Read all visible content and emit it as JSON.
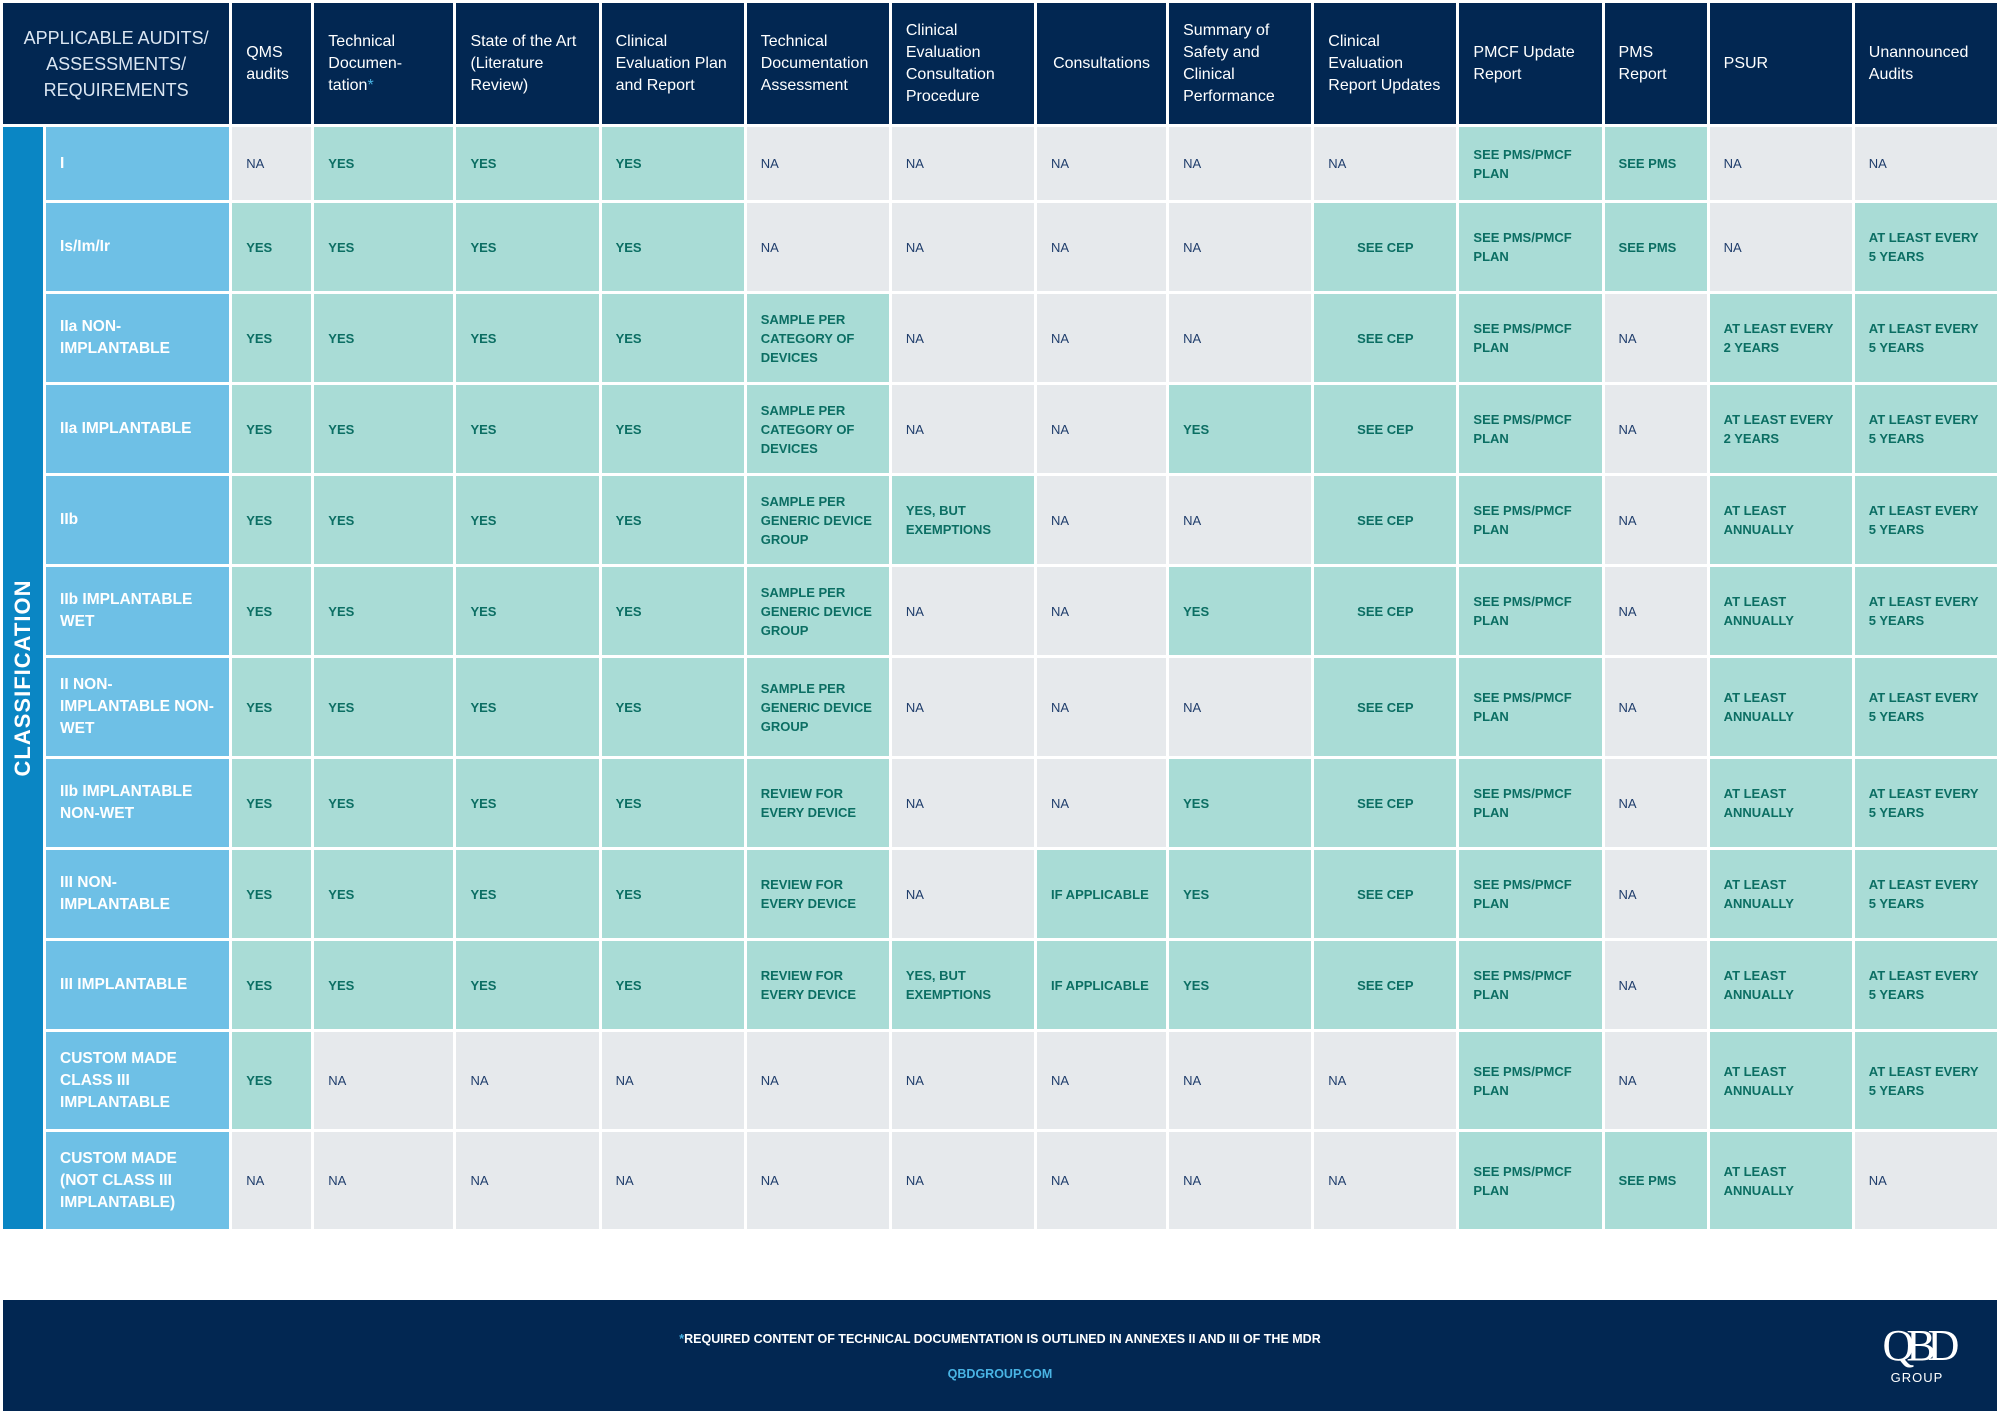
{
  "header": {
    "corner": "APPLICABLE AUDITS/ ASSESSMENTS/ REQUIREMENTS",
    "columns": [
      {
        "text": "QMS audits"
      },
      {
        "text": "Technical Documen-tation",
        "marker": "*"
      },
      {
        "text": "State of the Art (Literature Review)"
      },
      {
        "text": "Clinical Evaluation Plan and Report"
      },
      {
        "text": "Technical Documentation Assessment"
      },
      {
        "text": "Clinical Evaluation Consultation Procedure"
      },
      {
        "text": "Consultations"
      },
      {
        "text": "Summary of Safety and Clinical Performance"
      },
      {
        "text": "Clinical Evaluation Report Updates"
      },
      {
        "text": "PMCF Update Report"
      },
      {
        "text": "PMS Report"
      },
      {
        "text": "PSUR"
      },
      {
        "text": "Unannounced Audits"
      }
    ]
  },
  "side_label": "CLASSIFICATION",
  "rows": [
    {
      "label": "I",
      "cells": [
        {
          "text": "NA",
          "tone": "g"
        },
        {
          "text": "YES",
          "tone": "t"
        },
        {
          "text": "YES",
          "tone": "t"
        },
        {
          "text": "YES",
          "tone": "t"
        },
        {
          "text": "NA",
          "tone": "g"
        },
        {
          "text": "NA",
          "tone": "g"
        },
        {
          "text": "NA",
          "tone": "g"
        },
        {
          "text": "NA",
          "tone": "g"
        },
        {
          "text": "NA",
          "tone": "g"
        },
        {
          "text": "SEE PMS/PMCF PLAN",
          "tone": "t"
        },
        {
          "text": "SEE PMS",
          "tone": "t"
        },
        {
          "text": "NA",
          "tone": "g"
        },
        {
          "text": "NA",
          "tone": "g"
        }
      ]
    },
    {
      "label": "Is/Im/Ir",
      "cells": [
        {
          "text": "YES",
          "tone": "t"
        },
        {
          "text": "YES",
          "tone": "t"
        },
        {
          "text": "YES",
          "tone": "t"
        },
        {
          "text": "YES",
          "tone": "t"
        },
        {
          "text": "NA",
          "tone": "g"
        },
        {
          "text": "NA",
          "tone": "g"
        },
        {
          "text": "NA",
          "tone": "g"
        },
        {
          "text": "NA",
          "tone": "g"
        },
        {
          "text": "SEE CEP",
          "tone": "t",
          "center": true
        },
        {
          "text": "SEE PMS/PMCF PLAN",
          "tone": "t"
        },
        {
          "text": "SEE PMS",
          "tone": "t"
        },
        {
          "text": "NA",
          "tone": "g"
        },
        {
          "text": "AT LEAST EVERY 5 YEARS",
          "tone": "t"
        }
      ]
    },
    {
      "label": "IIa NON-IMPLANTABLE",
      "cells": [
        {
          "text": "YES",
          "tone": "t"
        },
        {
          "text": "YES",
          "tone": "t"
        },
        {
          "text": "YES",
          "tone": "t"
        },
        {
          "text": "YES",
          "tone": "t"
        },
        {
          "text": "SAMPLE PER CATEGORY OF DEVICES",
          "tone": "t"
        },
        {
          "text": "NA",
          "tone": "g"
        },
        {
          "text": "NA",
          "tone": "g"
        },
        {
          "text": "NA",
          "tone": "g"
        },
        {
          "text": "SEE CEP",
          "tone": "t",
          "center": true
        },
        {
          "text": "SEE PMS/PMCF PLAN",
          "tone": "t"
        },
        {
          "text": "NA",
          "tone": "g"
        },
        {
          "text": "AT LEAST EVERY 2 YEARS",
          "tone": "t"
        },
        {
          "text": "AT LEAST EVERY 5 YEARS",
          "tone": "t"
        }
      ]
    },
    {
      "label": "IIa IMPLANTABLE",
      "cells": [
        {
          "text": "YES",
          "tone": "t"
        },
        {
          "text": "YES",
          "tone": "t"
        },
        {
          "text": "YES",
          "tone": "t"
        },
        {
          "text": "YES",
          "tone": "t"
        },
        {
          "text": "SAMPLE PER CATEGORY OF DEVICES",
          "tone": "t"
        },
        {
          "text": "NA",
          "tone": "g"
        },
        {
          "text": "NA",
          "tone": "g"
        },
        {
          "text": "YES",
          "tone": "t"
        },
        {
          "text": "SEE CEP",
          "tone": "t",
          "center": true
        },
        {
          "text": "SEE PMS/PMCF PLAN",
          "tone": "t"
        },
        {
          "text": "NA",
          "tone": "g"
        },
        {
          "text": "AT LEAST EVERY 2 YEARS",
          "tone": "t"
        },
        {
          "text": "AT LEAST EVERY 5 YEARS",
          "tone": "t"
        }
      ]
    },
    {
      "label": "IIb",
      "cells": [
        {
          "text": "YES",
          "tone": "t"
        },
        {
          "text": "YES",
          "tone": "t"
        },
        {
          "text": "YES",
          "tone": "t"
        },
        {
          "text": "YES",
          "tone": "t"
        },
        {
          "text": "SAMPLE PER GENERIC DEVICE GROUP",
          "tone": "t"
        },
        {
          "text": "YES, BUT EXEMPTIONS",
          "tone": "t"
        },
        {
          "text": "NA",
          "tone": "g"
        },
        {
          "text": "NA",
          "tone": "g"
        },
        {
          "text": "SEE CEP",
          "tone": "t",
          "center": true
        },
        {
          "text": "SEE PMS/PMCF PLAN",
          "tone": "t"
        },
        {
          "text": "NA",
          "tone": "g"
        },
        {
          "text": "AT LEAST ANNUALLY",
          "tone": "t"
        },
        {
          "text": "AT LEAST EVERY 5 YEARS",
          "tone": "t"
        }
      ]
    },
    {
      "label": "IIb IMPLANTABLE WET",
      "cells": [
        {
          "text": "YES",
          "tone": "t"
        },
        {
          "text": "YES",
          "tone": "t"
        },
        {
          "text": "YES",
          "tone": "t"
        },
        {
          "text": "YES",
          "tone": "t"
        },
        {
          "text": "SAMPLE PER GENERIC DEVICE GROUP",
          "tone": "t"
        },
        {
          "text": "NA",
          "tone": "g"
        },
        {
          "text": "NA",
          "tone": "g"
        },
        {
          "text": "YES",
          "tone": "t"
        },
        {
          "text": "SEE CEP",
          "tone": "t",
          "center": true
        },
        {
          "text": "SEE PMS/PMCF PLAN",
          "tone": "t"
        },
        {
          "text": "NA",
          "tone": "g"
        },
        {
          "text": "AT LEAST ANNUALLY",
          "tone": "t"
        },
        {
          "text": "AT LEAST EVERY 5 YEARS",
          "tone": "t"
        }
      ]
    },
    {
      "label": "II NON-IMPLANTABLE NON-WET",
      "cells": [
        {
          "text": "YES",
          "tone": "t"
        },
        {
          "text": "YES",
          "tone": "t"
        },
        {
          "text": "YES",
          "tone": "t"
        },
        {
          "text": "YES",
          "tone": "t"
        },
        {
          "text": "SAMPLE PER GENERIC DEVICE GROUP",
          "tone": "t"
        },
        {
          "text": "NA",
          "tone": "g"
        },
        {
          "text": "NA",
          "tone": "g"
        },
        {
          "text": "NA",
          "tone": "g"
        },
        {
          "text": "SEE CEP",
          "tone": "t",
          "center": true
        },
        {
          "text": "SEE PMS/PMCF PLAN",
          "tone": "t"
        },
        {
          "text": "NA",
          "tone": "g"
        },
        {
          "text": "AT LEAST ANNUALLY",
          "tone": "t"
        },
        {
          "text": "AT LEAST EVERY 5 YEARS",
          "tone": "t"
        }
      ]
    },
    {
      "label": "IIb IMPLANTABLE NON-WET",
      "cells": [
        {
          "text": "YES",
          "tone": "t"
        },
        {
          "text": "YES",
          "tone": "t"
        },
        {
          "text": "YES",
          "tone": "t"
        },
        {
          "text": "YES",
          "tone": "t"
        },
        {
          "text": "REVIEW FOR EVERY DEVICE",
          "tone": "t"
        },
        {
          "text": "NA",
          "tone": "g"
        },
        {
          "text": "NA",
          "tone": "g"
        },
        {
          "text": "YES",
          "tone": "t"
        },
        {
          "text": "SEE CEP",
          "tone": "t",
          "center": true
        },
        {
          "text": "SEE PMS/PMCF PLAN",
          "tone": "t"
        },
        {
          "text": "NA",
          "tone": "g"
        },
        {
          "text": "AT LEAST ANNUALLY",
          "tone": "t"
        },
        {
          "text": "AT LEAST EVERY 5 YEARS",
          "tone": "t"
        }
      ]
    },
    {
      "label": "III NON-IMPLANTABLE",
      "cells": [
        {
          "text": "YES",
          "tone": "t"
        },
        {
          "text": "YES",
          "tone": "t"
        },
        {
          "text": "YES",
          "tone": "t"
        },
        {
          "text": "YES",
          "tone": "t"
        },
        {
          "text": "REVIEW FOR EVERY DEVICE",
          "tone": "t"
        },
        {
          "text": "NA",
          "tone": "g"
        },
        {
          "text": "IF APPLICABLE",
          "tone": "t"
        },
        {
          "text": "YES",
          "tone": "t"
        },
        {
          "text": "SEE CEP",
          "tone": "t",
          "center": true
        },
        {
          "text": "SEE PMS/PMCF PLAN",
          "tone": "t"
        },
        {
          "text": "NA",
          "tone": "g"
        },
        {
          "text": "AT LEAST ANNUALLY",
          "tone": "t"
        },
        {
          "text": "AT LEAST EVERY 5 YEARS",
          "tone": "t"
        }
      ]
    },
    {
      "label": "III IMPLANTABLE",
      "cells": [
        {
          "text": "YES",
          "tone": "t"
        },
        {
          "text": "YES",
          "tone": "t"
        },
        {
          "text": "YES",
          "tone": "t"
        },
        {
          "text": "YES",
          "tone": "t"
        },
        {
          "text": "REVIEW FOR EVERY DEVICE",
          "tone": "t"
        },
        {
          "text": "YES, BUT EXEMPTIONS",
          "tone": "t"
        },
        {
          "text": "IF APPLICABLE",
          "tone": "t"
        },
        {
          "text": "YES",
          "tone": "t"
        },
        {
          "text": "SEE CEP",
          "tone": "t",
          "center": true
        },
        {
          "text": "SEE PMS/PMCF PLAN",
          "tone": "t"
        },
        {
          "text": "NA",
          "tone": "g"
        },
        {
          "text": "AT LEAST ANNUALLY",
          "tone": "t"
        },
        {
          "text": "AT LEAST EVERY 5 YEARS",
          "tone": "t"
        }
      ]
    },
    {
      "label": "CUSTOM MADE CLASS III IMPLANTABLE",
      "cells": [
        {
          "text": "YES",
          "tone": "t"
        },
        {
          "text": "NA",
          "tone": "g"
        },
        {
          "text": "NA",
          "tone": "g"
        },
        {
          "text": "NA",
          "tone": "g"
        },
        {
          "text": "NA",
          "tone": "g"
        },
        {
          "text": "NA",
          "tone": "g"
        },
        {
          "text": "NA",
          "tone": "g"
        },
        {
          "text": "NA",
          "tone": "g"
        },
        {
          "text": "NA",
          "tone": "g"
        },
        {
          "text": "SEE PMS/PMCF PLAN",
          "tone": "t"
        },
        {
          "text": "NA",
          "tone": "g"
        },
        {
          "text": "AT LEAST ANNUALLY",
          "tone": "t"
        },
        {
          "text": "AT LEAST EVERY 5 YEARS",
          "tone": "t"
        }
      ]
    },
    {
      "label": "CUSTOM MADE (NOT CLASS III IMPLANTABLE)",
      "cells": [
        {
          "text": "NA",
          "tone": "g"
        },
        {
          "text": "NA",
          "tone": "g"
        },
        {
          "text": "NA",
          "tone": "g"
        },
        {
          "text": "NA",
          "tone": "g"
        },
        {
          "text": "NA",
          "tone": "g"
        },
        {
          "text": "NA",
          "tone": "g"
        },
        {
          "text": "NA",
          "tone": "g"
        },
        {
          "text": "NA",
          "tone": "g"
        },
        {
          "text": "NA",
          "tone": "g"
        },
        {
          "text": "SEE PMS/PMCF PLAN",
          "tone": "t"
        },
        {
          "text": "SEE PMS",
          "tone": "t"
        },
        {
          "text": "AT LEAST ANNUALLY",
          "tone": "t"
        },
        {
          "text": "NA",
          "tone": "g"
        }
      ]
    }
  ],
  "footer": {
    "footnote_marker": "*",
    "footnote": "REQUIRED CONTENT OF TECHNICAL DOCUMENTATION IS OUTLINED IN ANNEXES II AND III OF THE MDR",
    "website": "QBDGROUP.COM"
  },
  "logo": {
    "mark": "QBD",
    "text": "GROUP"
  },
  "colors": {
    "navy": "#022752",
    "side_blue": "#0a86c4",
    "row_label_blue": "#6ec0e6",
    "teal": "#a9dcd6",
    "grey": "#e6e9ec",
    "accent": "#49b4e4"
  }
}
